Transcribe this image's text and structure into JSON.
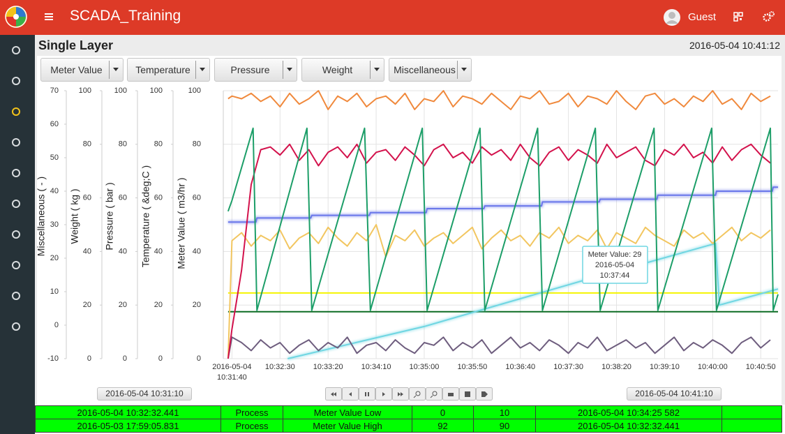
{
  "header": {
    "app_title": "SCADA_Training",
    "user": "Guest"
  },
  "panel": {
    "title": "Single Layer",
    "timestamp": "2016-05-04 10:41:12"
  },
  "toolbar": {
    "buttons": [
      "Meter Value",
      "Temperature",
      "Pressure",
      "Weight",
      "Miscellaneous"
    ]
  },
  "chart_data": {
    "type": "line",
    "y_label": "Meter Value ( m3/hr )",
    "ylim": [
      0,
      100
    ],
    "yticks": [
      0,
      20,
      40,
      60,
      80,
      100
    ],
    "grid": true,
    "extra_axes": [
      {
        "label": "Miscellaneous ( - )",
        "ylim": [
          -10,
          70
        ],
        "yticks": [
          -10,
          0,
          10,
          20,
          30,
          40,
          50,
          60,
          70
        ]
      },
      {
        "label": "Weight ( kg )",
        "ylim": [
          0,
          100
        ],
        "yticks": [
          0,
          20,
          40,
          60,
          80,
          100
        ]
      },
      {
        "label": "Pressure ( bar )",
        "ylim": [
          0,
          100
        ],
        "yticks": [
          0,
          20,
          40,
          60,
          80,
          100
        ]
      },
      {
        "label": "Temperature ( &deg;C )",
        "ylim": [
          0,
          100
        ],
        "yticks": [
          0,
          20,
          40,
          60,
          80,
          100
        ]
      }
    ],
    "xlim": [
      "10:31:31",
      "10:41:08"
    ],
    "x_date": "2016-05-04",
    "xticks": [
      "10:31:40",
      "10:32:30",
      "10:33:20",
      "10:34:10",
      "10:35:00",
      "10:35:50",
      "10:36:40",
      "10:37:30",
      "10:38:20",
      "10:39:10",
      "10:40:00",
      "10:40:50"
    ],
    "x": [
      "10:31:36",
      "10:31:40",
      "10:31:50",
      "10:32:00",
      "10:32:10",
      "10:32:20",
      "10:32:30",
      "10:32:40",
      "10:32:50",
      "10:33:00",
      "10:33:10",
      "10:33:20",
      "10:33:30",
      "10:33:40",
      "10:33:50",
      "10:34:00",
      "10:34:10",
      "10:34:20",
      "10:34:30",
      "10:34:40",
      "10:34:50",
      "10:35:00",
      "10:35:10",
      "10:35:20",
      "10:35:30",
      "10:35:40",
      "10:35:50",
      "10:36:00",
      "10:36:10",
      "10:36:20",
      "10:36:30",
      "10:36:40",
      "10:36:50",
      "10:37:00",
      "10:37:10",
      "10:37:20",
      "10:37:30",
      "10:37:40",
      "10:37:50",
      "10:38:00",
      "10:38:10",
      "10:38:20",
      "10:38:30",
      "10:38:40",
      "10:38:50",
      "10:39:00",
      "10:39:10",
      "10:39:20",
      "10:39:30",
      "10:39:40",
      "10:39:50",
      "10:40:00",
      "10:40:10",
      "10:40:20",
      "10:40:30",
      "10:40:40",
      "10:40:50",
      "10:41:00"
    ],
    "series": [
      {
        "color": "#0b6b22",
        "x": [
          "10:31:36",
          "10:41:08"
        ],
        "values": [
          17.5,
          17.5
        ]
      },
      {
        "color": "#f4f400",
        "x": [
          "10:31:36",
          "10:41:08"
        ],
        "values": [
          24.5,
          24.5
        ]
      },
      {
        "color": "#6fd6e2",
        "glow": true,
        "x": [
          "10:32:38",
          "10:35:00",
          "10:37:44",
          "10:40:03",
          "10:40:07",
          "10:41:08"
        ],
        "values": [
          0,
          12,
          29,
          43,
          20,
          26
        ]
      },
      {
        "color": "#6b78ea",
        "glow": true,
        "x": [
          "10:31:36",
          "10:32:05",
          "10:32:06",
          "10:33:02",
          "10:33:03",
          "10:34:03",
          "10:34:04",
          "10:35:02",
          "10:35:03",
          "10:36:02",
          "10:36:03",
          "10:37:02",
          "10:37:03",
          "10:38:02",
          "10:38:03",
          "10:39:02",
          "10:39:03",
          "10:40:03",
          "10:40:04",
          "10:41:02",
          "10:41:03",
          "10:41:08"
        ],
        "values": [
          51,
          51,
          52.5,
          52.5,
          53.5,
          53.5,
          54.5,
          54.5,
          56,
          56,
          57,
          57,
          58.5,
          58.5,
          59.5,
          59.5,
          61,
          61,
          62.5,
          62.5,
          64,
          64
        ]
      },
      {
        "color": "#6e5d7e",
        "values": [
          0,
          8,
          6,
          3,
          7,
          4,
          6,
          2,
          5,
          7,
          3,
          6,
          4,
          8,
          2,
          5,
          6,
          3,
          7,
          4,
          2,
          6,
          5,
          8,
          3,
          6,
          4,
          7,
          2,
          5,
          8,
          4,
          6,
          3,
          7,
          5,
          2,
          6,
          4,
          8,
          3,
          5,
          7,
          4,
          6,
          2,
          5,
          8,
          3,
          6,
          4,
          7,
          5,
          2,
          6,
          8,
          4,
          7
        ]
      },
      {
        "color": "#f2c660",
        "values": [
          0,
          44,
          47,
          42,
          46,
          44,
          48,
          41,
          45,
          47,
          43,
          49,
          45,
          42,
          47,
          44,
          50,
          38,
          46,
          44,
          48,
          42,
          45,
          47,
          43,
          46,
          49,
          41,
          45,
          48,
          44,
          46,
          42,
          47,
          45,
          49,
          43,
          46,
          44,
          48,
          41,
          47,
          45,
          43,
          49,
          46,
          44,
          42,
          48,
          45,
          47,
          43,
          46,
          49,
          44,
          47,
          45,
          48
        ]
      },
      {
        "color": "#d3124c",
        "values": [
          0,
          11,
          33,
          65,
          78,
          79,
          76,
          80,
          74,
          78,
          72,
          77,
          79,
          75,
          80,
          73,
          77,
          78,
          74,
          79,
          76,
          72,
          78,
          80,
          75,
          77,
          73,
          79,
          76,
          78,
          74,
          80,
          75,
          72,
          77,
          79,
          74,
          78,
          76,
          73,
          80,
          75,
          77,
          79,
          74,
          72,
          78,
          76,
          80,
          75,
          77,
          73,
          79,
          74,
          78,
          80,
          76,
          73
        ]
      },
      {
        "color": "#1c9e68",
        "x": [
          "10:31:36",
          "10:31:40",
          "10:32:02",
          "10:32:06",
          "10:32:58",
          "10:33:03",
          "10:33:58",
          "10:34:04",
          "10:34:58",
          "10:35:03",
          "10:35:58",
          "10:36:03",
          "10:36:58",
          "10:37:03",
          "10:37:58",
          "10:38:03",
          "10:38:59",
          "10:39:03",
          "10:39:59",
          "10:40:04",
          "10:41:00",
          "10:41:03",
          "10:41:08"
        ],
        "values": [
          55,
          59,
          86,
          18,
          86,
          18,
          86,
          18,
          86,
          18,
          86,
          18,
          86,
          18,
          86,
          18,
          86,
          18,
          86,
          18,
          86,
          18,
          24
        ]
      },
      {
        "color": "#f0893c",
        "values": [
          97,
          98,
          97,
          99,
          96,
          98,
          94,
          99,
          95,
          97,
          100,
          93,
          98,
          96,
          99,
          94,
          97,
          98,
          95,
          99,
          93,
          97,
          96,
          100,
          94,
          98,
          97,
          95,
          99,
          96,
          93,
          98,
          97,
          100,
          95,
          96,
          99,
          94,
          98,
          97,
          95,
          100,
          96,
          93,
          98,
          99,
          95,
          97,
          94,
          98,
          96,
          100,
          95,
          97,
          93,
          99,
          96,
          98
        ]
      }
    ],
    "tooltip": [
      "Meter Value: 29",
      "2016-05-04",
      "10:37:44"
    ]
  },
  "range": {
    "start": "2016-05-04 10:31:10",
    "end": "2016-05-04 10:41:10"
  },
  "alarms": {
    "rows": [
      [
        "2016-05-04 10:32:32.441",
        "Process",
        "Meter Value Low",
        0,
        10,
        "2016-05-04 10:34:25 582"
      ],
      [
        "2016-05-03 17:59:05.831",
        "Process",
        "Meter Value High",
        92,
        90,
        "2016-05-04 10:32:32.441"
      ]
    ]
  }
}
